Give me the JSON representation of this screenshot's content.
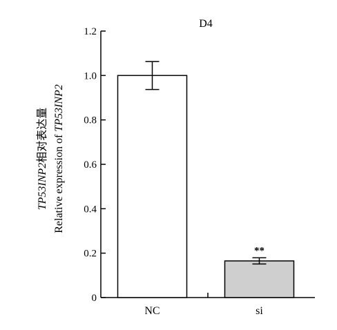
{
  "chart_data": {
    "type": "bar",
    "title": "D4",
    "ylabel_line1_italic": "TP53INP2",
    "ylabel_line1_rest": "相对表达量",
    "ylabel_line2_plain": "Relative expression of ",
    "ylabel_line2_italic": "TP53INP2",
    "categories": [
      "NC",
      "si"
    ],
    "values": [
      1.0,
      0.165
    ],
    "errors": [
      0.063,
      0.014
    ],
    "bar_colors": [
      "#ffffff",
      "#cfcfcf"
    ],
    "annotations": [
      "",
      "**"
    ],
    "ylim": [
      0,
      1.2
    ],
    "yticks": [
      0,
      0.2,
      0.4,
      0.6,
      0.8,
      1.0,
      1.2
    ],
    "ytick_labels": [
      "0",
      "0.2",
      "0.4",
      "0.6",
      "0.8",
      "1.0",
      "1.2"
    ],
    "grid": false,
    "legend": "none"
  }
}
